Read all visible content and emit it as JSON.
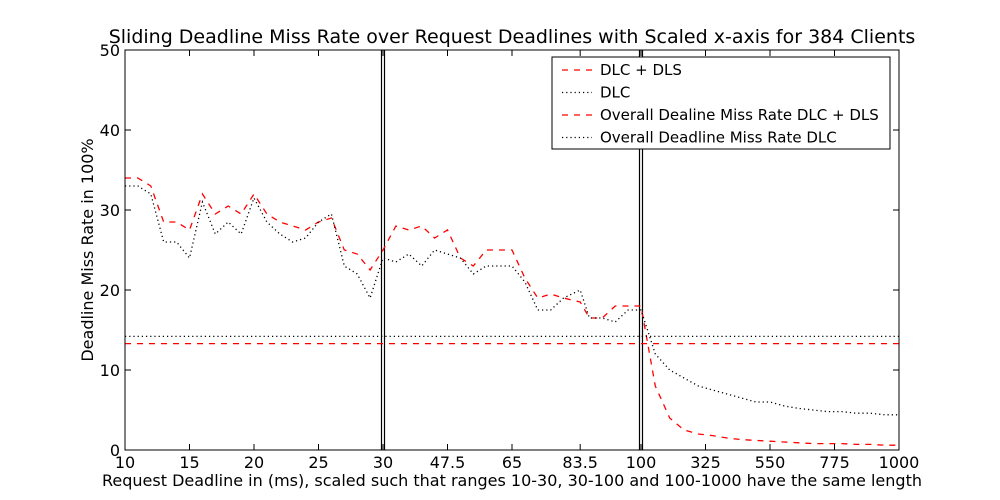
{
  "chart_data": {
    "type": "line",
    "title": "Sliding Deadline Miss Rate over Request Deadlines with Scaled x-axis for 384 Clients",
    "xlabel": "Request Deadline in (ms), scaled such that ranges 10-30, 30-100 and 100-1000 have the same length",
    "ylabel": "Deadline Miss Rate in 100%",
    "ylim": [
      0,
      50
    ],
    "yticks": [
      "0",
      "10",
      "20",
      "30",
      "40",
      "50"
    ],
    "xticks": [
      "10",
      "15",
      "20",
      "25",
      "30",
      "47.5",
      "65",
      "83.5",
      "100",
      "325",
      "550",
      "775",
      "1000"
    ],
    "grid": false,
    "legend_position": "top-right",
    "segment_boundaries": [
      30,
      100
    ],
    "series": [
      {
        "name": "DLC + DLS",
        "color": "#ff0000",
        "style": "dashed",
        "x": [
          10,
          11,
          12,
          13,
          14,
          15,
          16,
          17,
          18,
          19,
          20,
          21,
          22,
          23,
          24,
          25,
          26,
          27,
          28,
          29,
          30,
          33.5,
          37,
          40.5,
          44,
          47.5,
          51,
          54.5,
          58,
          61.5,
          65,
          68.5,
          72,
          75.5,
          79,
          83.5,
          86,
          89.5,
          93,
          96.5,
          100,
          150,
          200,
          250,
          300,
          350,
          400,
          450,
          500,
          550,
          600,
          650,
          700,
          750,
          800,
          850,
          900,
          950,
          1000
        ],
        "values": [
          34,
          34,
          33,
          28.5,
          28.5,
          27.5,
          32,
          29.5,
          30.5,
          29.5,
          32,
          29.5,
          28.5,
          28,
          27.5,
          28.5,
          29,
          25,
          24.5,
          22.5,
          25,
          28,
          27.5,
          28,
          26.5,
          27.5,
          24,
          23,
          25,
          25,
          25,
          21.5,
          19,
          19.5,
          19,
          18.5,
          16.5,
          16.5,
          18,
          18,
          18,
          8,
          4,
          2.5,
          2,
          1.8,
          1.5,
          1.3,
          1.2,
          1.1,
          1,
          0.9,
          0.8,
          0.8,
          0.8,
          0.7,
          0.7,
          0.6,
          0.6
        ]
      },
      {
        "name": "DLC",
        "color": "#000000",
        "style": "dotted",
        "x": [
          10,
          11,
          12,
          13,
          14,
          15,
          16,
          17,
          18,
          19,
          20,
          21,
          22,
          23,
          24,
          25,
          26,
          27,
          28,
          29,
          30,
          33.5,
          37,
          40.5,
          44,
          47.5,
          51,
          54.5,
          58,
          61.5,
          65,
          68.5,
          72,
          75.5,
          79,
          83.5,
          86,
          89.5,
          93,
          96.5,
          100,
          150,
          200,
          250,
          300,
          350,
          400,
          450,
          500,
          550,
          600,
          650,
          700,
          750,
          800,
          850,
          900,
          950,
          1000
        ],
        "values": [
          33,
          33,
          32,
          26,
          26,
          24,
          31,
          27,
          28.5,
          27,
          31.5,
          28.5,
          27,
          26,
          26.5,
          28.5,
          29.5,
          23,
          22,
          19,
          24,
          23.5,
          24.5,
          23,
          25,
          24.5,
          24,
          22,
          23,
          23,
          23,
          21,
          17.5,
          17.5,
          19,
          20,
          16.5,
          16.5,
          16,
          17.5,
          17.5,
          12,
          10,
          9,
          8,
          7.5,
          7,
          6.5,
          6,
          6,
          5.5,
          5.2,
          5,
          4.8,
          4.8,
          4.6,
          4.6,
          4.4,
          4.4
        ]
      },
      {
        "name": "Overall Dealine Miss Rate DLC + DLS",
        "color": "#ff0000",
        "style": "dashed",
        "constant": 13.3
      },
      {
        "name": "Overall Deadline Miss Rate DLC",
        "color": "#000000",
        "style": "dotted",
        "constant": 14.2
      }
    ]
  }
}
